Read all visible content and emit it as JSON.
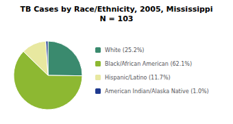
{
  "chart_data": {
    "type": "pie",
    "title": "TB Cases by Race/Ethnicity, 2005, Mississippi",
    "subtitle": "N = 103",
    "categories": [
      "White (25.2%)",
      "Black/African American (62.1%)",
      "Hispanic/Latino (11.7%)",
      "American Indian/Alaska Native (1.0%)"
    ],
    "values": [
      25.2,
      62.1,
      11.7,
      1.0
    ],
    "colors": [
      "#3a8a6e",
      "#8db832",
      "#e8e8a0",
      "#1f3a8f"
    ],
    "legend": "right",
    "data_labels": false
  }
}
